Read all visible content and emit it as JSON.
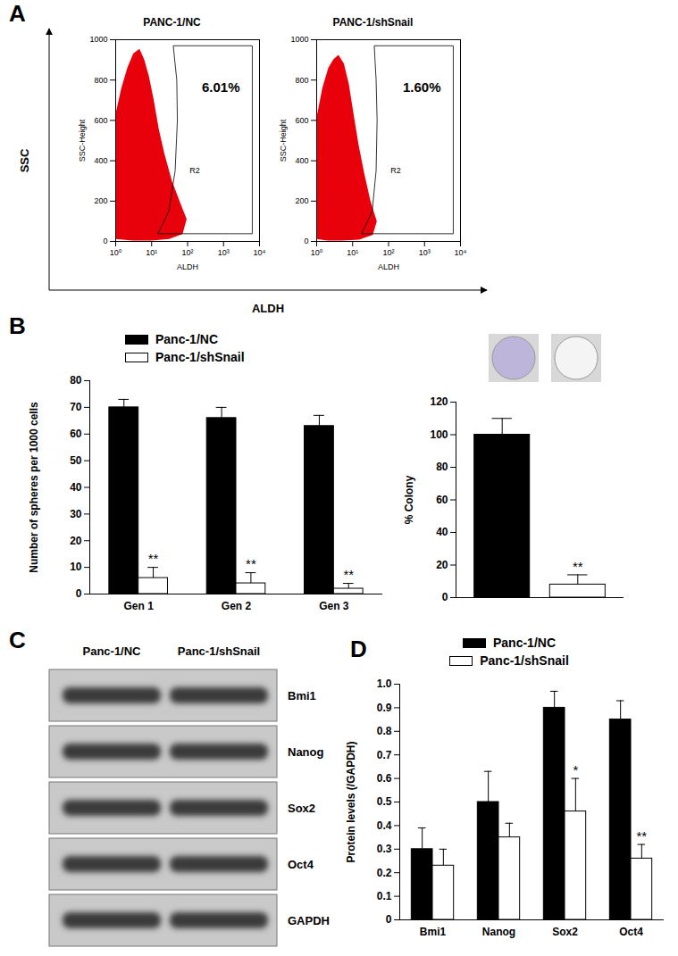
{
  "chart_data": [
    {
      "type": "scatter",
      "panel": "A",
      "x_label": "ALDH",
      "y_label": "SSC",
      "inner_x_label": "ALDH",
      "inner_y_label": "SSC-Height",
      "log": "x",
      "xlim": [
        1,
        10000
      ],
      "xticks": [
        {
          "value": 1,
          "label": "10⁰"
        },
        {
          "value": 10,
          "label": "10¹"
        },
        {
          "value": 100,
          "label": "10²"
        },
        {
          "value": 1000,
          "label": "10³"
        },
        {
          "value": 10000,
          "label": "10⁴"
        }
      ],
      "ylim": [
        0,
        1000
      ],
      "yticks": [
        0,
        200,
        400,
        600,
        800,
        1000
      ],
      "color": "#e8000b",
      "plots": [
        {
          "title": "PANC-1/NC",
          "events_outline": [
            [
              1,
              15
            ],
            [
              1,
              620
            ],
            [
              1.5,
              760
            ],
            [
              2.2,
              860
            ],
            [
              3.2,
              930
            ],
            [
              4.5,
              950
            ],
            [
              6,
              900
            ],
            [
              8,
              820
            ],
            [
              11,
              700
            ],
            [
              15,
              560
            ],
            [
              22,
              430
            ],
            [
              35,
              300
            ],
            [
              60,
              190
            ],
            [
              90,
              110
            ],
            [
              70,
              40
            ],
            [
              30,
              15
            ],
            [
              10,
              8
            ],
            [
              3,
              8
            ]
          ],
          "gate": {
            "name": "R2",
            "label": "6.01%",
            "outline": [
              [
                15,
                40
              ],
              [
                30,
                150
              ],
              [
                45,
                350
              ],
              [
                52,
                600
              ],
              [
                50,
                800
              ],
              [
                40,
                970
              ],
              [
                6300,
                970
              ],
              [
                6300,
                40
              ]
            ]
          }
        },
        {
          "title": "PANC-1/shSnail",
          "events_outline": [
            [
              1,
              15
            ],
            [
              1,
              600
            ],
            [
              1.5,
              760
            ],
            [
              2.2,
              860
            ],
            [
              3,
              900
            ],
            [
              4,
              920
            ],
            [
              5.5,
              880
            ],
            [
              7.5,
              780
            ],
            [
              10,
              640
            ],
            [
              14,
              480
            ],
            [
              20,
              340
            ],
            [
              30,
              200
            ],
            [
              45,
              100
            ],
            [
              35,
              35
            ],
            [
              15,
              12
            ],
            [
              5,
              8
            ],
            [
              2,
              8
            ]
          ],
          "gate": {
            "name": "R2",
            "label": "1.60%",
            "outline": [
              [
                18,
                40
              ],
              [
                35,
                150
              ],
              [
                45,
                350
              ],
              [
                48,
                600
              ],
              [
                45,
                800
              ],
              [
                40,
                970
              ],
              [
                6300,
                970
              ],
              [
                6300,
                40
              ]
            ]
          }
        }
      ]
    },
    {
      "type": "bar",
      "panel": "B",
      "y_label": "Number of spheres per 1000 cells",
      "categories": [
        "Gen 1",
        "Gen 2",
        "Gen 3"
      ],
      "ylim": [
        0,
        80
      ],
      "yticks": [
        0,
        10,
        20,
        30,
        40,
        50,
        60,
        70,
        80
      ],
      "legend": "top-left",
      "series": [
        {
          "name": "Panc-1/NC",
          "color": "#000000",
          "values": [
            70,
            66,
            63
          ],
          "errors": [
            3,
            4,
            4
          ],
          "significance": [
            null,
            null,
            null
          ]
        },
        {
          "name": "Panc-1/shSnail",
          "color": "#ffffff",
          "values": [
            6,
            4,
            2
          ],
          "errors": [
            4,
            4,
            2
          ],
          "significance": [
            "**",
            "**",
            "**"
          ]
        }
      ]
    },
    {
      "type": "bar",
      "y_label": "% Colony",
      "categories": [
        null
      ],
      "ylim": [
        0,
        120
      ],
      "yticks": [
        0,
        20,
        40,
        60,
        80,
        100,
        120
      ],
      "tick_labels": "y",
      "series": [
        {
          "name": "Panc-1/NC",
          "color": "#000000",
          "values": [
            100
          ],
          "errors": [
            10
          ],
          "significance": [
            null
          ]
        },
        {
          "name": "Panc-1/shSnail",
          "color": "#ffffff",
          "values": [
            8
          ],
          "errors": [
            6
          ],
          "significance": [
            "**"
          ]
        }
      ]
    },
    {
      "type": "blot",
      "panel": "C",
      "lanes": [
        "Panc-1/NC",
        "Panc-1/shSnail"
      ],
      "bands": [
        "Bmi1",
        "Nanog",
        "Sox2",
        "Oct4",
        "GAPDH"
      ]
    },
    {
      "type": "bar",
      "panel": "D",
      "y_label": "Protein levels (/GAPDH)",
      "categories": [
        "Bmi1",
        "Nanog",
        "Sox2",
        "Oct4"
      ],
      "ylim": [
        0,
        1
      ],
      "yticks": [
        0,
        0.1,
        0.2,
        0.3,
        0.4,
        0.5,
        0.6,
        0.7,
        0.8,
        0.9,
        {
          "value": 1,
          "label": "1.0"
        }
      ],
      "legend": "top",
      "series": [
        {
          "name": "Panc-1/NC",
          "color": "#000000",
          "values": [
            0.3,
            0.5,
            0.9,
            0.85
          ],
          "errors": [
            0.09,
            0.13,
            0.07,
            0.08
          ],
          "significance": [
            null,
            null,
            null,
            null
          ]
        },
        {
          "name": "Panc-1/shSnail",
          "color": "#ffffff",
          "values": [
            0.23,
            0.35,
            0.46,
            0.26
          ],
          "errors": [
            0.07,
            0.06,
            0.14,
            0.06
          ],
          "significance": [
            null,
            null,
            "*",
            "**"
          ]
        }
      ]
    }
  ]
}
